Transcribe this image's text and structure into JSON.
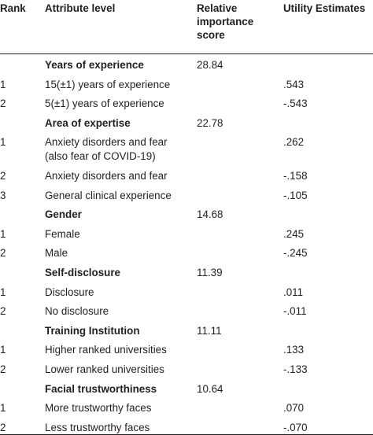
{
  "table": {
    "headers": {
      "rank": "Rank",
      "attribute": "Attribute level",
      "score_line1": "Relative",
      "score_line2": "importance",
      "score_line3": "score",
      "utility": "Utility Estimates"
    },
    "rows": [
      {
        "type": "group",
        "rank": "",
        "attribute": "Years of experience",
        "score": "28.84",
        "utility": ""
      },
      {
        "type": "level",
        "rank": "1",
        "attribute": "15(±1) years of experience",
        "score": "",
        "utility": ".543"
      },
      {
        "type": "level",
        "rank": "2",
        "attribute": "5(±1) years of experience",
        "score": "",
        "utility": "-.543"
      },
      {
        "type": "group",
        "rank": "",
        "attribute": "Area of expertise",
        "score": "22.78",
        "utility": ""
      },
      {
        "type": "level",
        "rank": "1",
        "attribute": "Anxiety disorders and fear",
        "attribute2": "(also fear of COVID-19)",
        "score": "",
        "utility": ".262"
      },
      {
        "type": "level",
        "rank": "2",
        "attribute": "Anxiety disorders and fear",
        "score": "",
        "utility": "-.158"
      },
      {
        "type": "level",
        "rank": "3",
        "attribute": "General clinical experience",
        "score": "",
        "utility": "-.105"
      },
      {
        "type": "group",
        "rank": "",
        "attribute": "Gender",
        "score": "14.68",
        "utility": ""
      },
      {
        "type": "level",
        "rank": "1",
        "attribute": "Female",
        "score": "",
        "utility": ".245"
      },
      {
        "type": "level",
        "rank": "2",
        "attribute": "Male",
        "score": "",
        "utility": "-.245"
      },
      {
        "type": "group",
        "rank": "",
        "attribute": "Self-disclosure",
        "score": "11.39",
        "utility": ""
      },
      {
        "type": "level",
        "rank": "1",
        "attribute": "Disclosure",
        "score": "",
        "utility": ".011"
      },
      {
        "type": "level",
        "rank": "2",
        "attribute": "No disclosure",
        "score": "",
        "utility": "-.011"
      },
      {
        "type": "group",
        "rank": "",
        "attribute": "Training Institution",
        "score": "11.11",
        "utility": ""
      },
      {
        "type": "level",
        "rank": "1",
        "attribute": "Higher ranked universities",
        "score": "",
        "utility": ".133"
      },
      {
        "type": "level",
        "rank": "2",
        "attribute": "Lower ranked universities",
        "score": "",
        "utility": "-.133"
      },
      {
        "type": "group",
        "rank": "",
        "attribute": "Facial trustworthiness",
        "score": "10.64",
        "utility": ""
      },
      {
        "type": "level",
        "rank": "1",
        "attribute": "More trustworthy faces",
        "score": "",
        "utility": ".070"
      },
      {
        "type": "level",
        "rank": "2",
        "attribute": "Less trustworthy faces",
        "score": "",
        "utility": "-.070"
      }
    ]
  }
}
